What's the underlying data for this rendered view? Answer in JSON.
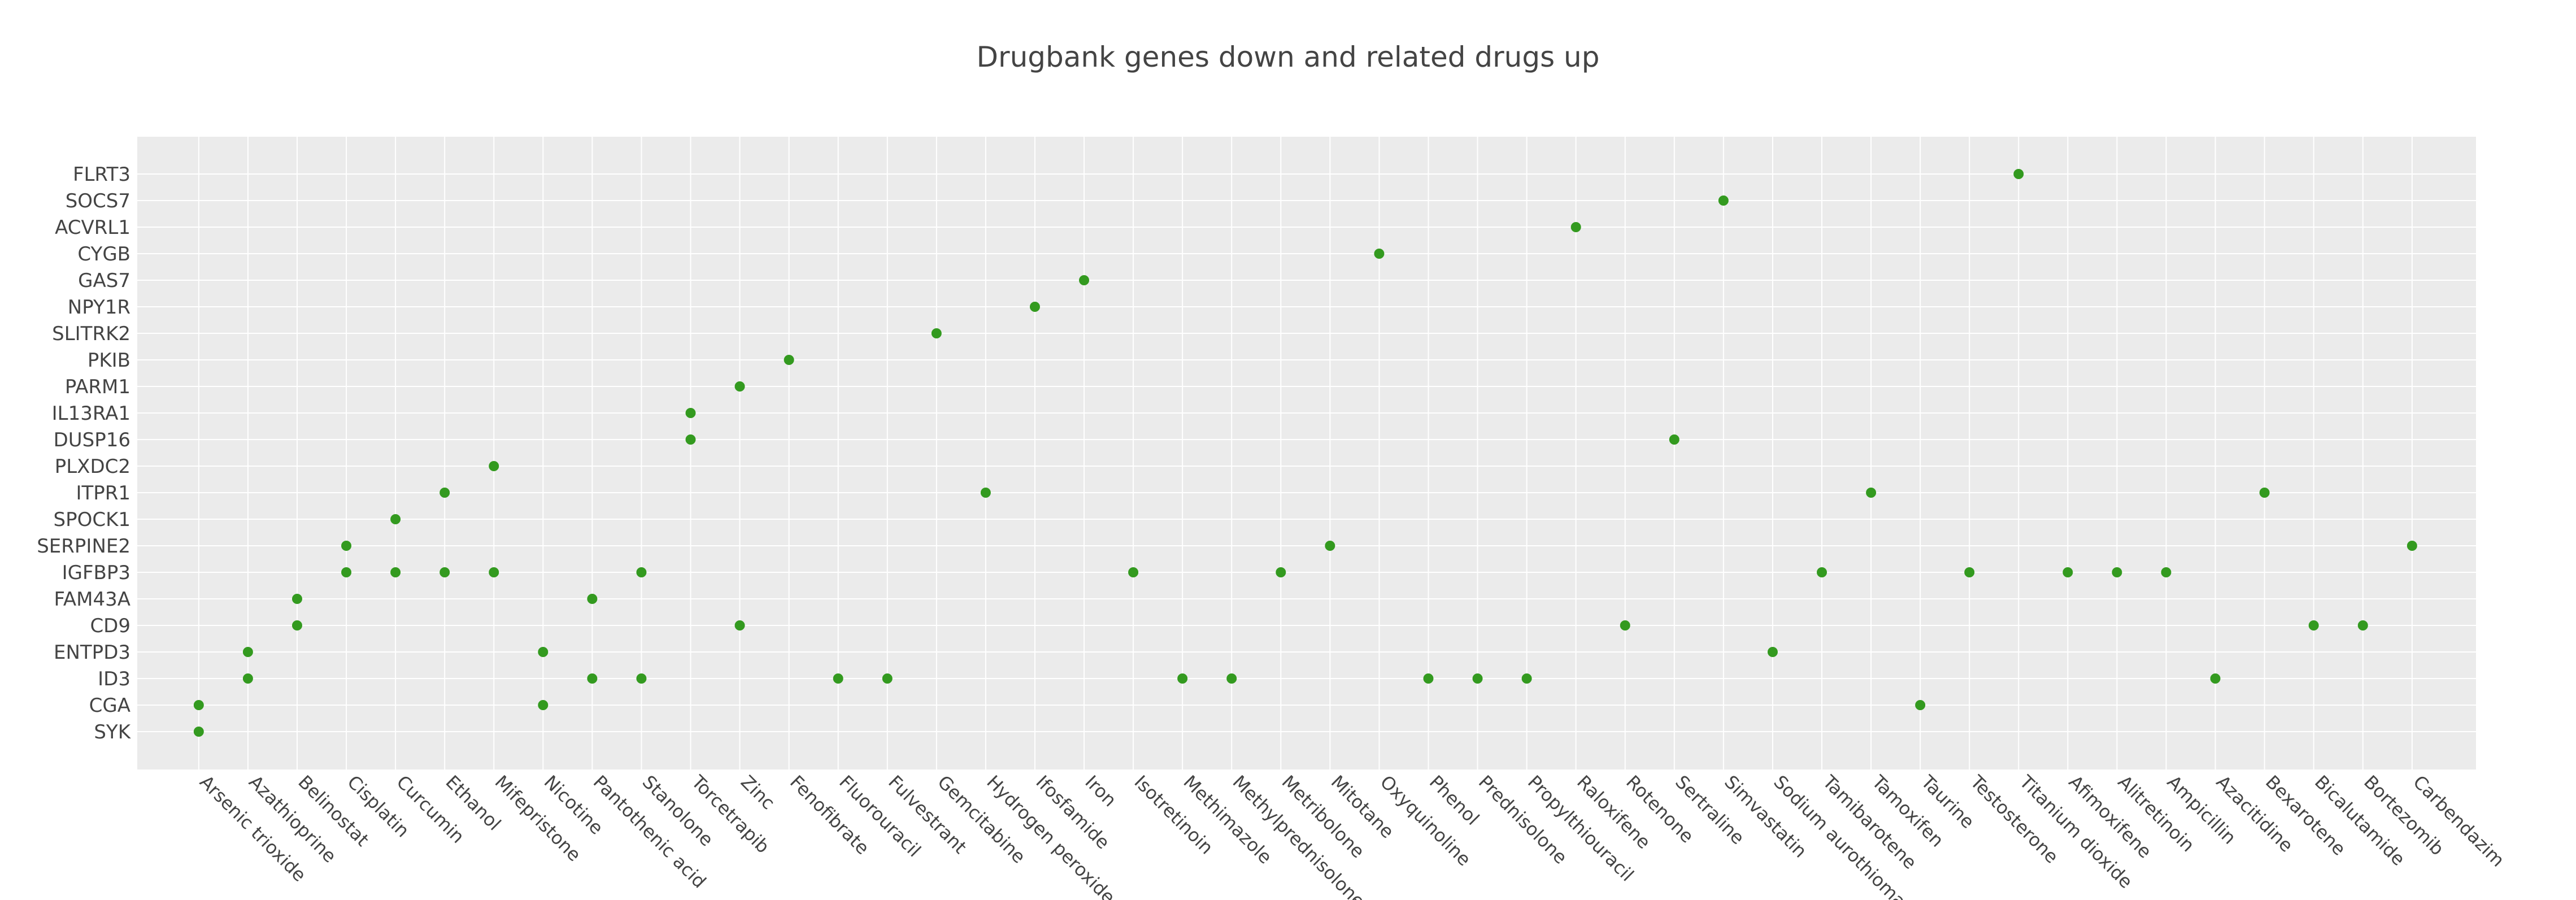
{
  "chart_data": {
    "type": "scatter",
    "title": "Drugbank genes down and related drugs up",
    "xlabel": "",
    "ylabel": "",
    "grid": true,
    "legend": "none",
    "marker_color": "#339a1f",
    "plot_bg": "#ebebeb",
    "grid_color": "#ffffff",
    "x_categories": [
      "Arsenic trioxide",
      "Azathioprine",
      "Belinostat",
      "Cisplatin",
      "Curcumin",
      "Ethanol",
      "Mifepristone",
      "Nicotine",
      "Pantothenic acid",
      "Stanolone",
      "Torcetrapib",
      "Zinc",
      "Fenofibrate",
      "Fluorouracil",
      "Fulvestrant",
      "Gemcitabine",
      "Hydrogen peroxide",
      "Ifosfamide",
      "Iron",
      "Isotretinoin",
      "Methimazole",
      "Methylprednisolone",
      "Metribolone",
      "Mitotane",
      "Oxyquinoline",
      "Phenol",
      "Prednisolone",
      "Propylthiouracil",
      "Raloxifene",
      "Rotenone",
      "Sertraline",
      "Simvastatin",
      "Sodium aurothiomalate",
      "Tamibarotene",
      "Tamoxifen",
      "Taurine",
      "Testosterone",
      "Titanium dioxide",
      "Afimoxifene",
      "Alitretinoin",
      "Ampicillin",
      "Azacitidine",
      "Bexarotene",
      "Bicalutamide",
      "Bortezomib",
      "Carbendazim"
    ],
    "y_categories": [
      "SYK",
      "CGA",
      "ID3",
      "ENTPD3",
      "CD9",
      "FAM43A",
      "IGFBP3",
      "SERPINE2",
      "SPOCK1",
      "ITPR1",
      "PLXDC2",
      "DUSP16",
      "IL13RA1",
      "PARM1",
      "PKIB",
      "SLITRK2",
      "NPY1R",
      "GAS7",
      "CYGB",
      "ACVRL1",
      "SOCS7",
      "FLRT3"
    ],
    "points": [
      {
        "x": "Arsenic trioxide",
        "y": "SYK"
      },
      {
        "x": "Arsenic trioxide",
        "y": "CGA"
      },
      {
        "x": "Azathioprine",
        "y": "ID3"
      },
      {
        "x": "Azathioprine",
        "y": "ENTPD3"
      },
      {
        "x": "Belinostat",
        "y": "CD9"
      },
      {
        "x": "Belinostat",
        "y": "FAM43A"
      },
      {
        "x": "Cisplatin",
        "y": "IGFBP3"
      },
      {
        "x": "Cisplatin",
        "y": "SERPINE2"
      },
      {
        "x": "Curcumin",
        "y": "IGFBP3"
      },
      {
        "x": "Curcumin",
        "y": "SPOCK1"
      },
      {
        "x": "Ethanol",
        "y": "IGFBP3"
      },
      {
        "x": "Ethanol",
        "y": "ITPR1"
      },
      {
        "x": "Mifepristone",
        "y": "IGFBP3"
      },
      {
        "x": "Mifepristone",
        "y": "PLXDC2"
      },
      {
        "x": "Nicotine",
        "y": "CGA"
      },
      {
        "x": "Nicotine",
        "y": "ENTPD3"
      },
      {
        "x": "Pantothenic acid",
        "y": "ID3"
      },
      {
        "x": "Pantothenic acid",
        "y": "FAM43A"
      },
      {
        "x": "Stanolone",
        "y": "ID3"
      },
      {
        "x": "Stanolone",
        "y": "IGFBP3"
      },
      {
        "x": "Torcetrapib",
        "y": "DUSP16"
      },
      {
        "x": "Torcetrapib",
        "y": "IL13RA1"
      },
      {
        "x": "Zinc",
        "y": "CD9"
      },
      {
        "x": "Zinc",
        "y": "PARM1"
      },
      {
        "x": "Fenofibrate",
        "y": "PKIB"
      },
      {
        "x": "Fluorouracil",
        "y": "ID3"
      },
      {
        "x": "Fulvestrant",
        "y": "ID3"
      },
      {
        "x": "Gemcitabine",
        "y": "SLITRK2"
      },
      {
        "x": "Hydrogen peroxide",
        "y": "ITPR1"
      },
      {
        "x": "Ifosfamide",
        "y": "NPY1R"
      },
      {
        "x": "Iron",
        "y": "GAS7"
      },
      {
        "x": "Isotretinoin",
        "y": "IGFBP3"
      },
      {
        "x": "Methimazole",
        "y": "ID3"
      },
      {
        "x": "Methylprednisolone",
        "y": "ID3"
      },
      {
        "x": "Metribolone",
        "y": "IGFBP3"
      },
      {
        "x": "Mitotane",
        "y": "SERPINE2"
      },
      {
        "x": "Oxyquinoline",
        "y": "CYGB"
      },
      {
        "x": "Phenol",
        "y": "ID3"
      },
      {
        "x": "Prednisolone",
        "y": "ID3"
      },
      {
        "x": "Propylthiouracil",
        "y": "ID3"
      },
      {
        "x": "Raloxifene",
        "y": "ACVRL1"
      },
      {
        "x": "Rotenone",
        "y": "CD9"
      },
      {
        "x": "Sertraline",
        "y": "DUSP16"
      },
      {
        "x": "Simvastatin",
        "y": "SOCS7"
      },
      {
        "x": "Sodium aurothiomalate",
        "y": "ENTPD3"
      },
      {
        "x": "Tamibarotene",
        "y": "IGFBP3"
      },
      {
        "x": "Tamoxifen",
        "y": "ITPR1"
      },
      {
        "x": "Taurine",
        "y": "CGA"
      },
      {
        "x": "Testosterone",
        "y": "IGFBP3"
      },
      {
        "x": "Titanium dioxide",
        "y": "FLRT3"
      },
      {
        "x": "Afimoxifene",
        "y": "IGFBP3"
      },
      {
        "x": "Alitretinoin",
        "y": "IGFBP3"
      },
      {
        "x": "Ampicillin",
        "y": "IGFBP3"
      },
      {
        "x": "Azacitidine",
        "y": "ID3"
      },
      {
        "x": "Bexarotene",
        "y": "ITPR1"
      },
      {
        "x": "Bicalutamide",
        "y": "CD9"
      },
      {
        "x": "Bortezomib",
        "y": "CD9"
      },
      {
        "x": "Carbendazim",
        "y": "SERPINE2"
      }
    ]
  }
}
